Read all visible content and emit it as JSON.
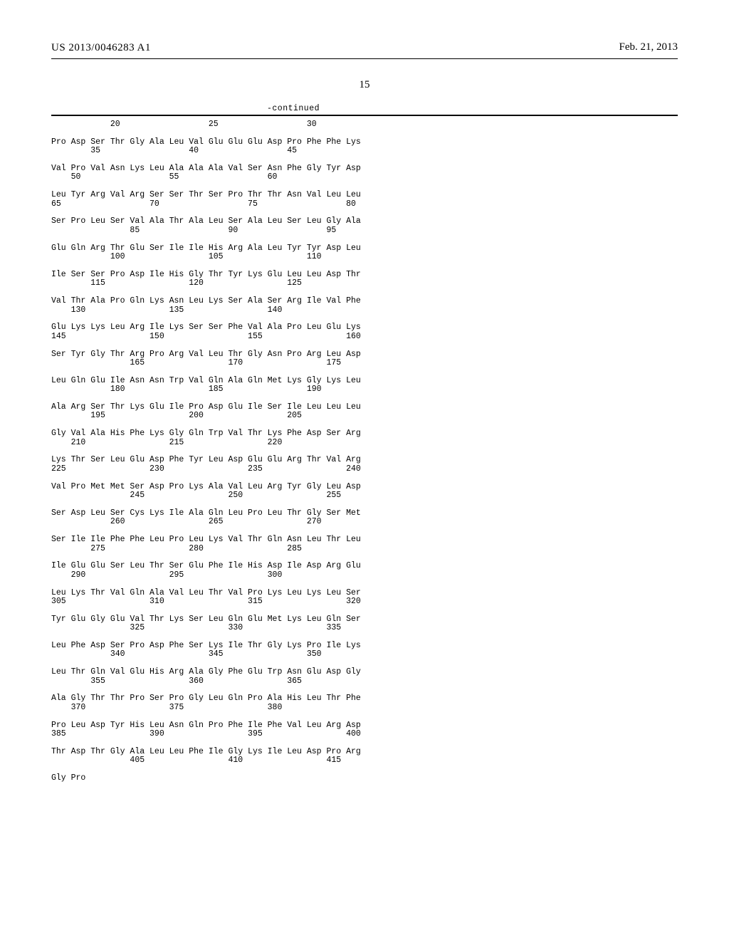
{
  "header": {
    "patent_number": "US 2013/0046283 A1",
    "date": "Feb. 21, 2013"
  },
  "page_number": "15",
  "continued_label": "-continued",
  "seq": {
    "font_family": "Courier New",
    "font_size_pt": 9,
    "color": "#000000",
    "lines": [
      "            20                  25                  30",
      "",
      "Pro Asp Ser Thr Gly Ala Leu Val Glu Glu Glu Asp Pro Phe Phe Lys",
      "        35                  40                  45",
      "",
      "Val Pro Val Asn Lys Leu Ala Ala Ala Val Ser Asn Phe Gly Tyr Asp",
      "    50                  55                  60",
      "",
      "Leu Tyr Arg Val Arg Ser Ser Thr Ser Pro Thr Thr Asn Val Leu Leu",
      "65                  70                  75                  80",
      "",
      "Ser Pro Leu Ser Val Ala Thr Ala Leu Ser Ala Leu Ser Leu Gly Ala",
      "                85                  90                  95",
      "",
      "Glu Gln Arg Thr Glu Ser Ile Ile His Arg Ala Leu Tyr Tyr Asp Leu",
      "            100                 105                 110",
      "",
      "Ile Ser Ser Pro Asp Ile His Gly Thr Tyr Lys Glu Leu Leu Asp Thr",
      "        115                 120                 125",
      "",
      "Val Thr Ala Pro Gln Lys Asn Leu Lys Ser Ala Ser Arg Ile Val Phe",
      "    130                 135                 140",
      "",
      "Glu Lys Lys Leu Arg Ile Lys Ser Ser Phe Val Ala Pro Leu Glu Lys",
      "145                 150                 155                 160",
      "",
      "Ser Tyr Gly Thr Arg Pro Arg Val Leu Thr Gly Asn Pro Arg Leu Asp",
      "                165                 170                 175",
      "",
      "Leu Gln Glu Ile Asn Asn Trp Val Gln Ala Gln Met Lys Gly Lys Leu",
      "            180                 185                 190",
      "",
      "Ala Arg Ser Thr Lys Glu Ile Pro Asp Glu Ile Ser Ile Leu Leu Leu",
      "        195                 200                 205",
      "",
      "Gly Val Ala His Phe Lys Gly Gln Trp Val Thr Lys Phe Asp Ser Arg",
      "    210                 215                 220",
      "",
      "Lys Thr Ser Leu Glu Asp Phe Tyr Leu Asp Glu Glu Arg Thr Val Arg",
      "225                 230                 235                 240",
      "",
      "Val Pro Met Met Ser Asp Pro Lys Ala Val Leu Arg Tyr Gly Leu Asp",
      "                245                 250                 255",
      "",
      "Ser Asp Leu Ser Cys Lys Ile Ala Gln Leu Pro Leu Thr Gly Ser Met",
      "            260                 265                 270",
      "",
      "Ser Ile Ile Phe Phe Leu Pro Leu Lys Val Thr Gln Asn Leu Thr Leu",
      "        275                 280                 285",
      "",
      "Ile Glu Glu Ser Leu Thr Ser Glu Phe Ile His Asp Ile Asp Arg Glu",
      "    290                 295                 300",
      "",
      "Leu Lys Thr Val Gln Ala Val Leu Thr Val Pro Lys Leu Lys Leu Ser",
      "305                 310                 315                 320",
      "",
      "Tyr Glu Gly Glu Val Thr Lys Ser Leu Gln Glu Met Lys Leu Gln Ser",
      "                325                 330                 335",
      "",
      "Leu Phe Asp Ser Pro Asp Phe Ser Lys Ile Thr Gly Lys Pro Ile Lys",
      "            340                 345                 350",
      "",
      "Leu Thr Gln Val Glu His Arg Ala Gly Phe Glu Trp Asn Glu Asp Gly",
      "        355                 360                 365",
      "",
      "Ala Gly Thr Thr Pro Ser Pro Gly Leu Gln Pro Ala His Leu Thr Phe",
      "    370                 375                 380",
      "",
      "Pro Leu Asp Tyr His Leu Asn Gln Pro Phe Ile Phe Val Leu Arg Asp",
      "385                 390                 395                 400",
      "",
      "Thr Asp Thr Gly Ala Leu Leu Phe Ile Gly Lys Ile Leu Asp Pro Arg",
      "                405                 410                 415",
      "",
      "Gly Pro"
    ]
  }
}
